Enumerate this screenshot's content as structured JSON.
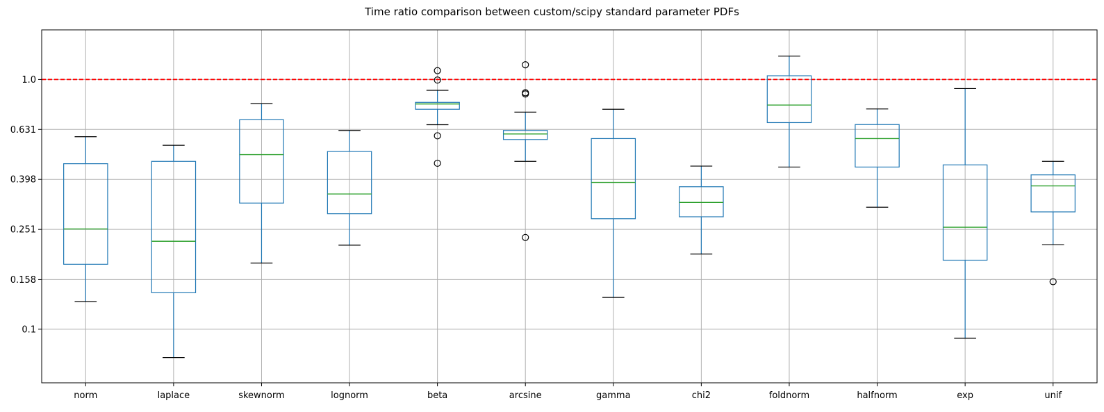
{
  "chart_data": {
    "type": "box",
    "title": "Time ratio comparison between custom/scipy standard parameter PDFs",
    "xlabel": "",
    "ylabel": "",
    "yscale": "log",
    "ylim": [
      0.061,
      1.58
    ],
    "ytick_labels": [
      "0.1",
      "0.158",
      "0.251",
      "0.398",
      "0.631",
      "1.0"
    ],
    "yticks": [
      0.1,
      0.158,
      0.251,
      0.398,
      0.631,
      1.0
    ],
    "grid": true,
    "reference_line": {
      "y": 1.0,
      "style": "dashed",
      "color": "#ff0000"
    },
    "categories": [
      "norm",
      "laplace",
      "skewnorm",
      "lognorm",
      "beta",
      "arcsine",
      "gamma",
      "chi2",
      "foldnorm",
      "halfnorm",
      "exp",
      "unif"
    ],
    "boxes": [
      {
        "whisker_low": 0.129,
        "q1": 0.182,
        "median": 0.252,
        "q3": 0.46,
        "whisker_high": 0.59,
        "outliers": []
      },
      {
        "whisker_low": 0.077,
        "q1": 0.14,
        "median": 0.225,
        "q3": 0.47,
        "whisker_high": 0.545,
        "outliers": []
      },
      {
        "whisker_low": 0.184,
        "q1": 0.32,
        "median": 0.5,
        "q3": 0.69,
        "whisker_high": 0.8,
        "outliers": []
      },
      {
        "whisker_low": 0.217,
        "q1": 0.29,
        "median": 0.348,
        "q3": 0.515,
        "whisker_high": 0.625,
        "outliers": []
      },
      {
        "whisker_low": 0.659,
        "q1": 0.76,
        "median": 0.798,
        "q3": 0.81,
        "whisker_high": 0.905,
        "outliers": [
          1.085,
          0.995,
          0.595,
          0.462
        ]
      },
      {
        "whisker_low": 0.47,
        "q1": 0.575,
        "median": 0.605,
        "q3": 0.625,
        "whisker_high": 0.74,
        "outliers": [
          1.145,
          0.885,
          0.875,
          0.233
        ]
      },
      {
        "whisker_low": 0.134,
        "q1": 0.277,
        "median": 0.387,
        "q3": 0.58,
        "whisker_high": 0.76,
        "outliers": []
      },
      {
        "whisker_low": 0.2,
        "q1": 0.282,
        "median": 0.322,
        "q3": 0.372,
        "whisker_high": 0.45,
        "outliers": []
      },
      {
        "whisker_low": 0.446,
        "q1": 0.672,
        "median": 0.79,
        "q3": 1.035,
        "whisker_high": 1.24,
        "outliers": []
      },
      {
        "whisker_low": 0.308,
        "q1": 0.446,
        "median": 0.58,
        "q3": 0.66,
        "whisker_high": 0.762,
        "outliers": []
      },
      {
        "whisker_low": 0.092,
        "q1": 0.189,
        "median": 0.256,
        "q3": 0.455,
        "whisker_high": 0.92,
        "outliers": []
      },
      {
        "whisker_low": 0.218,
        "q1": 0.295,
        "median": 0.375,
        "q3": 0.415,
        "whisker_high": 0.47,
        "outliers": [
          0.155
        ]
      }
    ],
    "colors": {
      "box": "#1f77b4",
      "median": "#2ca02c",
      "whisker": "#1f77b4",
      "grid": "#b0b0b0",
      "reference": "#ff0000"
    }
  }
}
